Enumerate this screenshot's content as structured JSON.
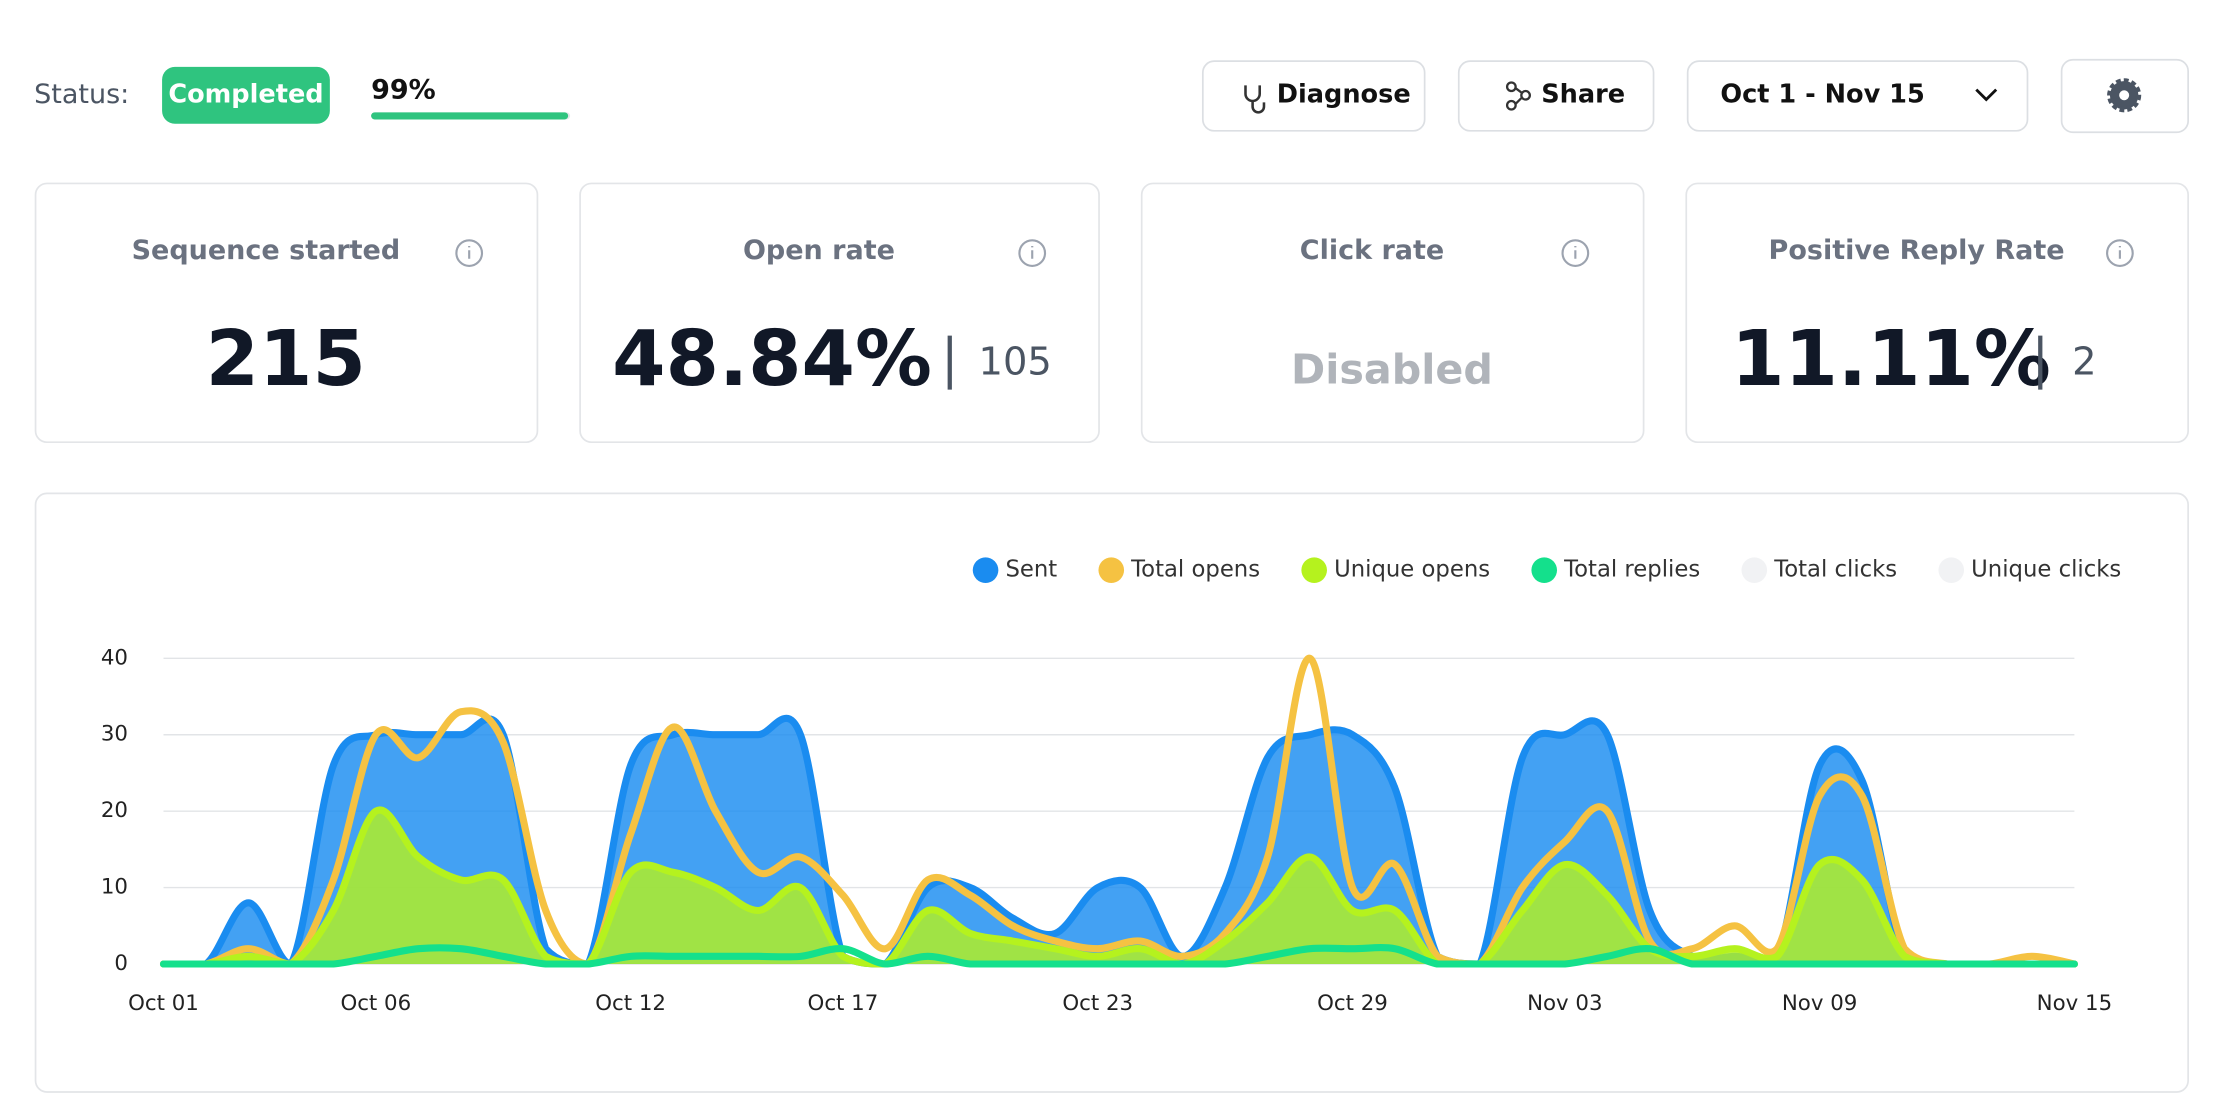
{
  "status": {
    "label": "Status:",
    "badge": "Completed",
    "progress": {
      "label": "99%",
      "value": 99
    }
  },
  "buttons": {
    "diagnose": "Diagnose",
    "share": "Share",
    "date_range": "Oct 1 - Nov 15"
  },
  "cards": [
    {
      "title": "Sequence started",
      "value": "215"
    },
    {
      "title": "Open rate",
      "value": "48.84%",
      "count": "105"
    },
    {
      "title": "Click rate",
      "value": "Disabled"
    },
    {
      "title": "Positive Reply Rate",
      "value": "11.11%",
      "count": "2"
    }
  ],
  "chart_data": {
    "type": "area",
    "categories": [
      "Oct 01",
      null,
      null,
      null,
      null,
      "Oct 06",
      null,
      null,
      null,
      null,
      null,
      "Oct 12",
      null,
      null,
      null,
      null,
      "Oct 17",
      null,
      null,
      null,
      null,
      null,
      "Oct 23",
      null,
      null,
      null,
      null,
      null,
      "Oct 29",
      null,
      null,
      null,
      null,
      "Nov 03",
      null,
      null,
      null,
      null,
      null,
      "Nov 09",
      null,
      null,
      null,
      null,
      null,
      "Nov 15"
    ],
    "series": [
      {
        "name": "Sent",
        "color": "#1a8cf0",
        "fill": true,
        "values": [
          0,
          0,
          8,
          0,
          26,
          30,
          30,
          30,
          30,
          2,
          0,
          26,
          30,
          30,
          30,
          30,
          1,
          0,
          10,
          10,
          6,
          4,
          10,
          10,
          1,
          10,
          27,
          30,
          30,
          23,
          1,
          0,
          27,
          30,
          30,
          7,
          1,
          1,
          1,
          26,
          24,
          1,
          0,
          0,
          0,
          0
        ]
      },
      {
        "name": "Total opens",
        "color": "#f5c242",
        "fill": false,
        "values": [
          0,
          0,
          2,
          0,
          11,
          30,
          27,
          33,
          29,
          7,
          0,
          17,
          31,
          20,
          12,
          14,
          9,
          2,
          11,
          9,
          5,
          3,
          2,
          3,
          1,
          4,
          14,
          40,
          10,
          13,
          1,
          0,
          10,
          16,
          20,
          3,
          2,
          5,
          2,
          22,
          22,
          2,
          0,
          0,
          1,
          0
        ]
      },
      {
        "name": "Unique opens",
        "color": "#b5f21e",
        "fill": true,
        "values": [
          0,
          0,
          1,
          0,
          7,
          20,
          14,
          11,
          11,
          1,
          0,
          12,
          12,
          10,
          7,
          10,
          1,
          0,
          7,
          4,
          3,
          2,
          1,
          2,
          0,
          3,
          8,
          14,
          7,
          7,
          0,
          0,
          7,
          13,
          9,
          2,
          1,
          2,
          1,
          13,
          11,
          1,
          0,
          0,
          0,
          0
        ]
      },
      {
        "name": "Total replies",
        "color": "#14e08c",
        "fill": false,
        "values": [
          0,
          0,
          0,
          0,
          0,
          1,
          2,
          2,
          1,
          0,
          0,
          1,
          1,
          1,
          1,
          1,
          2,
          0,
          1,
          0,
          0,
          0,
          0,
          0,
          0,
          0,
          1,
          2,
          2,
          2,
          0,
          0,
          0,
          0,
          1,
          2,
          0,
          0,
          0,
          0,
          0,
          0,
          0,
          0,
          0,
          0
        ]
      }
    ],
    "legend_disabled": [
      {
        "name": "Total clicks",
        "color": "#f1f2f4"
      },
      {
        "name": "Unique clicks",
        "color": "#f1f2f4"
      }
    ],
    "ylim": [
      0,
      40
    ],
    "yticks": [
      0,
      10,
      20,
      30,
      40
    ],
    "grid": true,
    "legend": "top-right"
  }
}
